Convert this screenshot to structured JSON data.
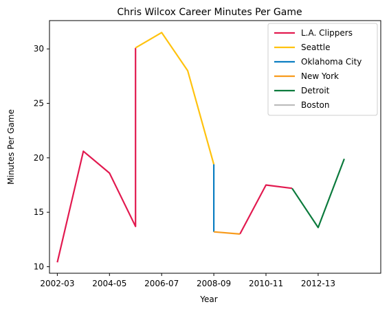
{
  "chart_data": {
    "type": "line",
    "title": "Chris Wilcox Career Minutes Per Game",
    "xlabel": "Year",
    "ylabel": "Minutes Per Game",
    "x_tick_labels": [
      "2002-03",
      "2004-05",
      "2006-07",
      "2008-09",
      "2010-11",
      "2012-13"
    ],
    "y_ticks": [
      10,
      15,
      20,
      25,
      30
    ],
    "xlim": [
      -0.3,
      12.4
    ],
    "ylim": [
      9.4,
      32.6
    ],
    "grid": false,
    "legend_position": "top-right",
    "series": [
      {
        "name": "L.A. Clippers",
        "color": "#e2194f",
        "segments": [
          [
            [
              0,
              10.4
            ],
            [
              1,
              20.6
            ],
            [
              2,
              18.6
            ],
            [
              3,
              13.7
            ],
            [
              3,
              30.1
            ]
          ],
          [
            [
              7,
              13.0
            ],
            [
              8,
              17.5
            ],
            [
              9,
              17.2
            ]
          ]
        ]
      },
      {
        "name": "Seattle",
        "color": "#ffc20e",
        "segments": [
          [
            [
              3,
              30.1
            ],
            [
              4,
              31.5
            ],
            [
              5,
              28.0
            ],
            [
              6,
              19.4
            ]
          ]
        ]
      },
      {
        "name": "Oklahoma City",
        "color": "#0b7ec2",
        "segments": [
          [
            [
              6,
              19.4
            ],
            [
              6,
              13.2
            ]
          ]
        ]
      },
      {
        "name": "New York",
        "color": "#f89b1c",
        "segments": [
          [
            [
              6,
              13.2
            ],
            [
              7,
              13.0
            ]
          ]
        ]
      },
      {
        "name": "Detroit",
        "color": "#0b7a3c",
        "segments": [
          [
            [
              9,
              17.2
            ],
            [
              10,
              13.6
            ],
            [
              11,
              19.9
            ]
          ]
        ]
      },
      {
        "name": "Boston",
        "color": "#bdbdbd",
        "segments": []
      }
    ]
  }
}
